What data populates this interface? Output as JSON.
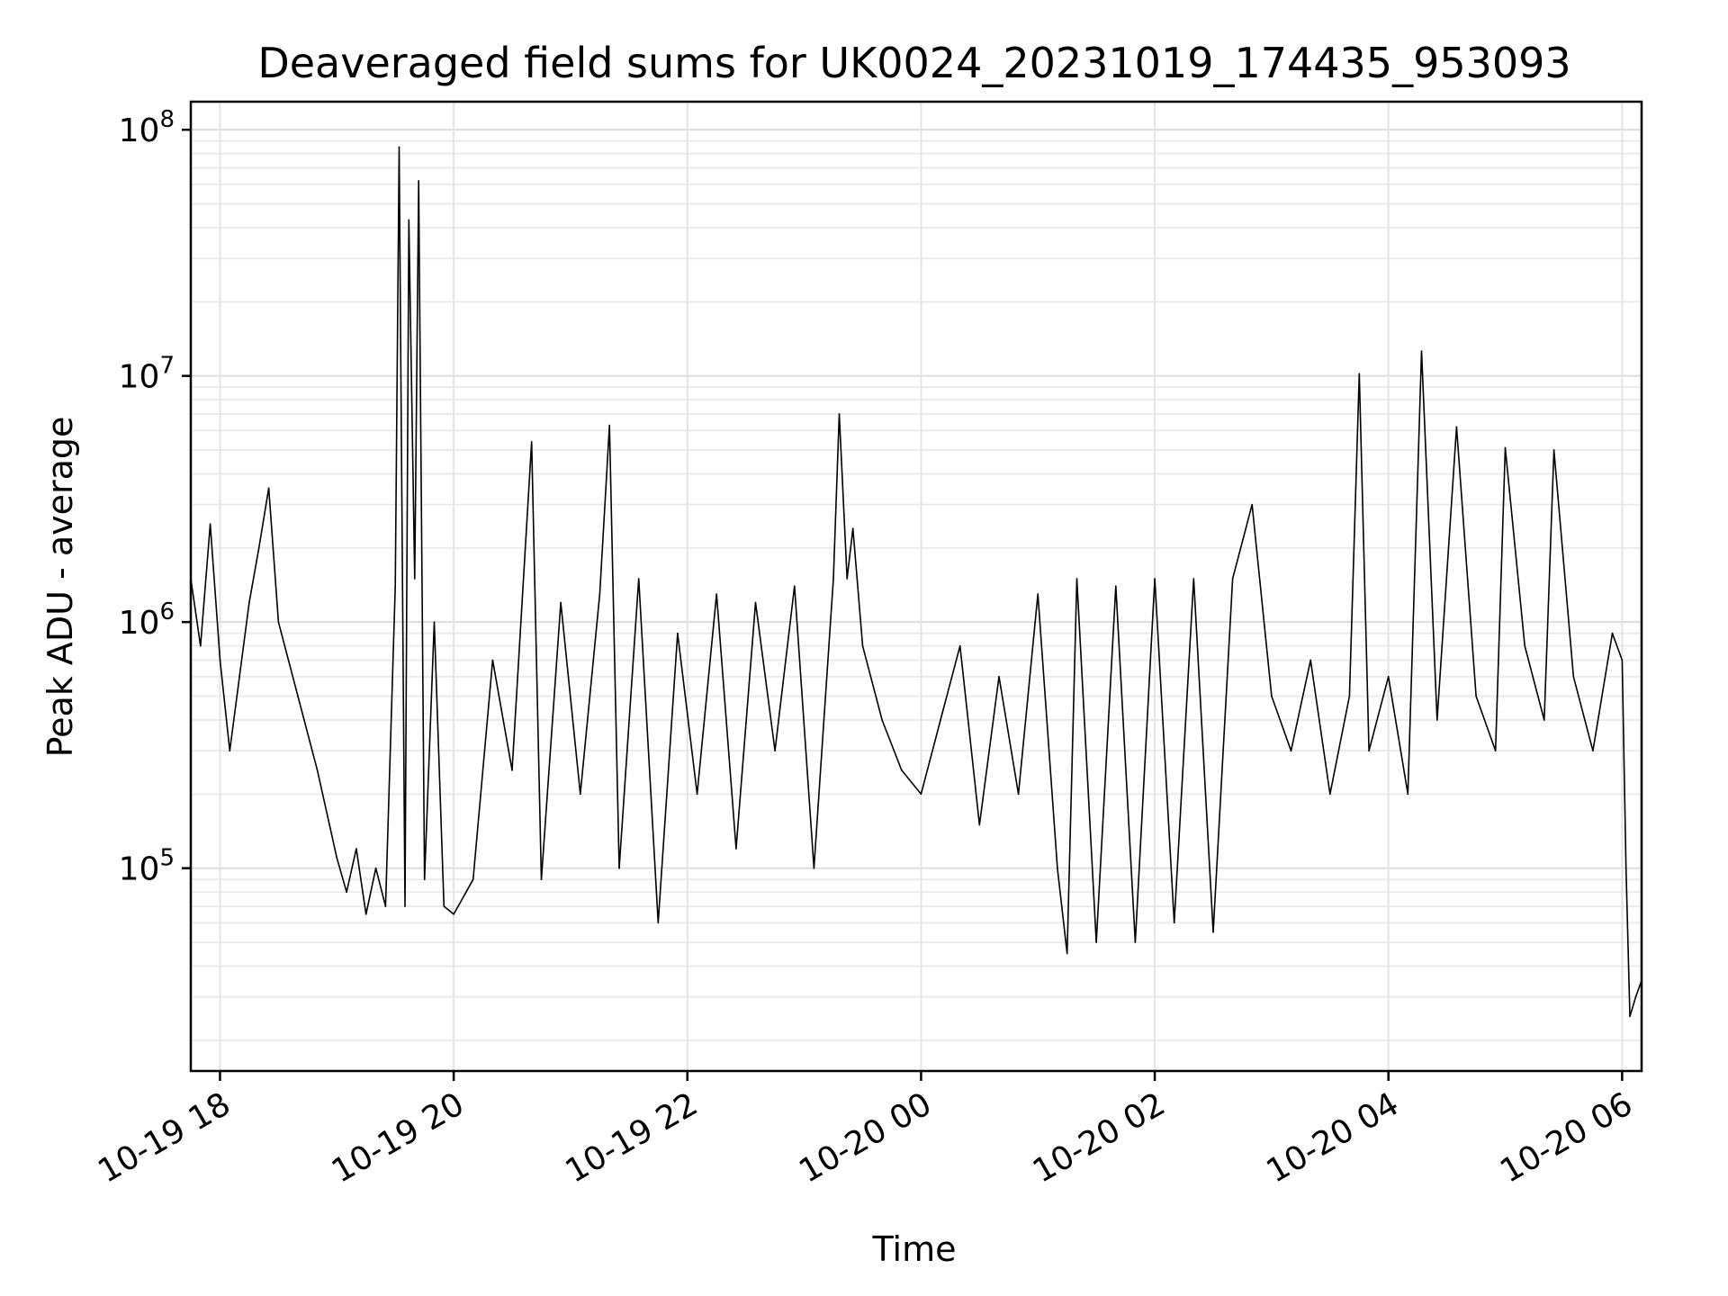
{
  "chart_data": {
    "type": "line",
    "title": "Deaveraged field sums for UK0024_20231019_174435_953093",
    "xlabel": "Time",
    "ylabel": "Peak ADU - average",
    "x_scale": "time",
    "y_scale": "log",
    "xlim": [
      "2023-10-19 17:45",
      "2023-10-20 06:10"
    ],
    "ylim": [
      15000,
      130000000
    ],
    "grid": true,
    "line_color": "#000000",
    "x_ticks": [
      {
        "t": "2023-10-19 18:00",
        "label": "10-19 18"
      },
      {
        "t": "2023-10-19 20:00",
        "label": "10-19 20"
      },
      {
        "t": "2023-10-19 22:00",
        "label": "10-19 22"
      },
      {
        "t": "2023-10-20 00:00",
        "label": "10-20 00"
      },
      {
        "t": "2023-10-20 02:00",
        "label": "10-20 02"
      },
      {
        "t": "2023-10-20 04:00",
        "label": "10-20 04"
      },
      {
        "t": "2023-10-20 06:00",
        "label": "10-20 06"
      }
    ],
    "y_ticks": [
      {
        "value": 100000,
        "base": "10",
        "exp": "5"
      },
      {
        "value": 1000000,
        "base": "10",
        "exp": "6"
      },
      {
        "value": 10000000,
        "base": "10",
        "exp": "7"
      },
      {
        "value": 100000000,
        "base": "10",
        "exp": "8"
      }
    ],
    "series": [
      {
        "points": [
          [
            "2023-10-19 17:45",
            1500000
          ],
          [
            "2023-10-19 17:50",
            800000
          ],
          [
            "2023-10-19 17:55",
            2500000
          ],
          [
            "2023-10-19 18:00",
            700000
          ],
          [
            "2023-10-19 18:05",
            300000
          ],
          [
            "2023-10-19 18:10",
            600000
          ],
          [
            "2023-10-19 18:15",
            1200000
          ],
          [
            "2023-10-19 18:20",
            2000000
          ],
          [
            "2023-10-19 18:25",
            3500000
          ],
          [
            "2023-10-19 18:30",
            1000000
          ],
          [
            "2023-10-19 18:40",
            500000
          ],
          [
            "2023-10-19 18:50",
            250000
          ],
          [
            "2023-10-19 19:00",
            110000
          ],
          [
            "2023-10-19 19:05",
            80000
          ],
          [
            "2023-10-19 19:10",
            120000
          ],
          [
            "2023-10-19 19:15",
            65000
          ],
          [
            "2023-10-19 19:20",
            100000
          ],
          [
            "2023-10-19 19:25",
            70000
          ],
          [
            "2023-10-19 19:30",
            1400000
          ],
          [
            "2023-10-19 19:32",
            85000000
          ],
          [
            "2023-10-19 19:35",
            70000
          ],
          [
            "2023-10-19 19:37",
            43000000
          ],
          [
            "2023-10-19 19:40",
            1500000
          ],
          [
            "2023-10-19 19:42",
            62000000
          ],
          [
            "2023-10-19 19:45",
            90000
          ],
          [
            "2023-10-19 19:50",
            1000000
          ],
          [
            "2023-10-19 19:55",
            70000
          ],
          [
            "2023-10-19 20:00",
            65000
          ],
          [
            "2023-10-19 20:10",
            90000
          ],
          [
            "2023-10-19 20:20",
            700000
          ],
          [
            "2023-10-19 20:30",
            250000
          ],
          [
            "2023-10-19 20:40",
            5400000
          ],
          [
            "2023-10-19 20:45",
            90000
          ],
          [
            "2023-10-19 20:55",
            1200000
          ],
          [
            "2023-10-19 21:05",
            200000
          ],
          [
            "2023-10-19 21:15",
            1300000
          ],
          [
            "2023-10-19 21:20",
            6300000
          ],
          [
            "2023-10-19 21:25",
            100000
          ],
          [
            "2023-10-19 21:35",
            1500000
          ],
          [
            "2023-10-19 21:45",
            60000
          ],
          [
            "2023-10-19 21:55",
            900000
          ],
          [
            "2023-10-19 22:05",
            200000
          ],
          [
            "2023-10-19 22:15",
            1300000
          ],
          [
            "2023-10-19 22:25",
            120000
          ],
          [
            "2023-10-19 22:35",
            1200000
          ],
          [
            "2023-10-19 22:45",
            300000
          ],
          [
            "2023-10-19 22:55",
            1400000
          ],
          [
            "2023-10-19 23:05",
            100000
          ],
          [
            "2023-10-19 23:15",
            1500000
          ],
          [
            "2023-10-19 23:18",
            7000000
          ],
          [
            "2023-10-19 23:22",
            1500000
          ],
          [
            "2023-10-19 23:25",
            2400000
          ],
          [
            "2023-10-19 23:30",
            800000
          ],
          [
            "2023-10-19 23:40",
            400000
          ],
          [
            "2023-10-19 23:50",
            250000
          ],
          [
            "2023-10-20 00:00",
            200000
          ],
          [
            "2023-10-20 00:10",
            400000
          ],
          [
            "2023-10-20 00:20",
            800000
          ],
          [
            "2023-10-20 00:30",
            150000
          ],
          [
            "2023-10-20 00:40",
            600000
          ],
          [
            "2023-10-20 00:50",
            200000
          ],
          [
            "2023-10-20 01:00",
            1300000
          ],
          [
            "2023-10-20 01:10",
            100000
          ],
          [
            "2023-10-20 01:15",
            45000
          ],
          [
            "2023-10-20 01:20",
            1500000
          ],
          [
            "2023-10-20 01:30",
            50000
          ],
          [
            "2023-10-20 01:40",
            1400000
          ],
          [
            "2023-10-20 01:50",
            50000
          ],
          [
            "2023-10-20 02:00",
            1500000
          ],
          [
            "2023-10-20 02:10",
            60000
          ],
          [
            "2023-10-20 02:20",
            1500000
          ],
          [
            "2023-10-20 02:30",
            55000
          ],
          [
            "2023-10-20 02:40",
            1500000
          ],
          [
            "2023-10-20 02:50",
            3000000
          ],
          [
            "2023-10-20 03:00",
            500000
          ],
          [
            "2023-10-20 03:10",
            300000
          ],
          [
            "2023-10-20 03:20",
            700000
          ],
          [
            "2023-10-20 03:30",
            200000
          ],
          [
            "2023-10-20 03:40",
            500000
          ],
          [
            "2023-10-20 03:45",
            10200000
          ],
          [
            "2023-10-20 03:50",
            300000
          ],
          [
            "2023-10-20 04:00",
            600000
          ],
          [
            "2023-10-20 04:10",
            200000
          ],
          [
            "2023-10-20 04:17",
            12600000
          ],
          [
            "2023-10-20 04:25",
            400000
          ],
          [
            "2023-10-20 04:35",
            6200000
          ],
          [
            "2023-10-20 04:45",
            500000
          ],
          [
            "2023-10-20 04:55",
            300000
          ],
          [
            "2023-10-20 05:00",
            5100000
          ],
          [
            "2023-10-20 05:10",
            800000
          ],
          [
            "2023-10-20 05:20",
            400000
          ],
          [
            "2023-10-20 05:25",
            5000000
          ],
          [
            "2023-10-20 05:35",
            600000
          ],
          [
            "2023-10-20 05:45",
            300000
          ],
          [
            "2023-10-20 05:55",
            900000
          ],
          [
            "2023-10-20 06:00",
            700000
          ],
          [
            "2023-10-20 06:02",
            100000
          ],
          [
            "2023-10-20 06:04",
            25000
          ],
          [
            "2023-10-20 06:07",
            30000
          ],
          [
            "2023-10-20 06:10",
            35000
          ]
        ]
      }
    ]
  }
}
